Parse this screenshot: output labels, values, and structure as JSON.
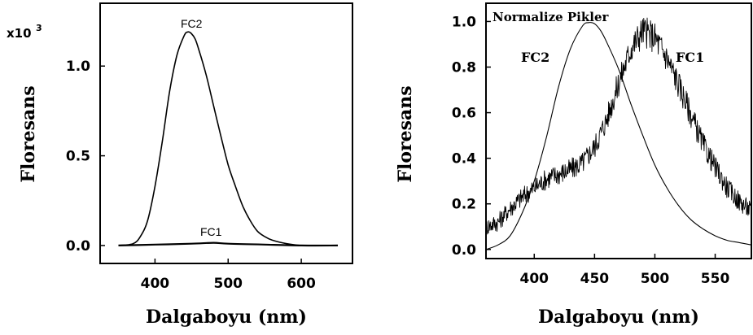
{
  "chart_data": [
    {
      "type": "line",
      "ylabel": "Floresans",
      "xlabel": "Dalgaboyu (nm)",
      "y_multiplier_base": "x10",
      "y_multiplier_exp": "3",
      "xlim": [
        325,
        670
      ],
      "ylim": [
        -0.1,
        1.35
      ],
      "x_ticks": [
        400,
        500,
        600
      ],
      "x_tick_labels": [
        "400",
        "500",
        "600"
      ],
      "y_ticks": [
        0.0,
        0.5,
        1.0
      ],
      "y_tick_labels": [
        "0.0",
        "0.5",
        "1.0"
      ],
      "series": [
        {
          "name": "FC2",
          "x": [
            350,
            370,
            380,
            390,
            400,
            410,
            420,
            430,
            440,
            445,
            450,
            455,
            460,
            470,
            480,
            490,
            500,
            510,
            520,
            530,
            540,
            550,
            560,
            580,
            600,
            620,
            650
          ],
          "y": [
            0.0,
            0.01,
            0.05,
            0.14,
            0.33,
            0.58,
            0.86,
            1.06,
            1.17,
            1.19,
            1.18,
            1.15,
            1.09,
            0.95,
            0.78,
            0.61,
            0.45,
            0.33,
            0.22,
            0.14,
            0.08,
            0.05,
            0.03,
            0.01,
            0.0,
            0.0,
            0.0
          ]
        },
        {
          "name": "FC1",
          "x": [
            350,
            400,
            450,
            480,
            500,
            550,
            600,
            650
          ],
          "y": [
            0.0,
            0.005,
            0.01,
            0.015,
            0.01,
            0.005,
            0.0,
            0.0
          ]
        }
      ]
    },
    {
      "type": "line",
      "title": "Normalize Pikler",
      "ylabel": "Floresans",
      "xlabel": "Dalgaboyu (nm)",
      "xlim": [
        360,
        580
      ],
      "ylim": [
        -0.04,
        1.08
      ],
      "x_ticks": [
        400,
        450,
        500,
        550
      ],
      "x_tick_labels": [
        "400",
        "450",
        "500",
        "550"
      ],
      "y_ticks": [
        0.0,
        0.2,
        0.4,
        0.6,
        0.8,
        1.0
      ],
      "y_tick_labels": [
        "0.0",
        "0.2",
        "0.4",
        "0.6",
        "0.8",
        "1.0"
      ],
      "series": [
        {
          "name": "FC2",
          "x": [
            360,
            370,
            380,
            390,
            400,
            410,
            420,
            430,
            440,
            445,
            450,
            455,
            460,
            470,
            480,
            490,
            500,
            510,
            520,
            530,
            540,
            550,
            560,
            570,
            580
          ],
          "y": [
            0.0,
            0.02,
            0.06,
            0.16,
            0.3,
            0.49,
            0.71,
            0.88,
            0.98,
            0.995,
            0.99,
            0.96,
            0.91,
            0.79,
            0.64,
            0.5,
            0.37,
            0.27,
            0.19,
            0.13,
            0.09,
            0.06,
            0.04,
            0.03,
            0.02
          ]
        },
        {
          "name": "FC1",
          "x": [
            360,
            370,
            380,
            390,
            400,
            410,
            420,
            430,
            440,
            450,
            460,
            470,
            480,
            490,
            500,
            510,
            520,
            530,
            540,
            550,
            560,
            570,
            580
          ],
          "y": [
            0.1,
            0.12,
            0.18,
            0.23,
            0.27,
            0.31,
            0.33,
            0.35,
            0.38,
            0.45,
            0.57,
            0.73,
            0.88,
            0.96,
            0.93,
            0.84,
            0.72,
            0.59,
            0.46,
            0.36,
            0.27,
            0.21,
            0.17
          ]
        }
      ]
    }
  ]
}
